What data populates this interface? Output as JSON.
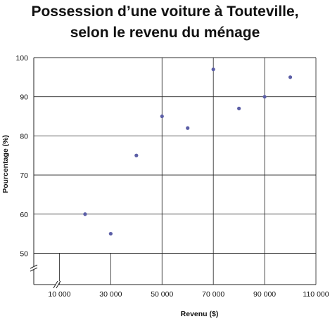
{
  "chart_data": {
    "type": "scatter",
    "title": [
      "Possession d’une voiture  à Touteville,",
      "selon le revenu du ménage"
    ],
    "xlabel": "Revenu ($)",
    "ylabel": "Pourcentage (%)",
    "x_ticks": [
      {
        "value": 10000,
        "label": "10 000"
      },
      {
        "value": 30000,
        "label": "30 000"
      },
      {
        "value": 50000,
        "label": "50 000"
      },
      {
        "value": 70000,
        "label": "70 000"
      },
      {
        "value": 90000,
        "label": "90 000"
      },
      {
        "value": 110000,
        "label": "110 000"
      }
    ],
    "y_ticks": [
      {
        "value": 50,
        "label": "50"
      },
      {
        "value": 60,
        "label": "60"
      },
      {
        "value": 70,
        "label": "70"
      },
      {
        "value": 80,
        "label": "80"
      },
      {
        "value": 90,
        "label": "90"
      },
      {
        "value": 100,
        "label": "100"
      }
    ],
    "xlim": [
      0,
      110000
    ],
    "ylim": [
      42,
      100
    ],
    "axis_breaks": [
      "x",
      "y"
    ],
    "grid": true,
    "points": [
      {
        "x": 20000,
        "y": 60
      },
      {
        "x": 30000,
        "y": 55
      },
      {
        "x": 40000,
        "y": 75
      },
      {
        "x": 50000,
        "y": 85
      },
      {
        "x": 60000,
        "y": 82
      },
      {
        "x": 70000,
        "y": 97
      },
      {
        "x": 80000,
        "y": 87
      },
      {
        "x": 90000,
        "y": 90
      },
      {
        "x": 100000,
        "y": 95
      }
    ],
    "colors": {
      "points": "#5b5ea6",
      "grid": "#222222"
    }
  }
}
